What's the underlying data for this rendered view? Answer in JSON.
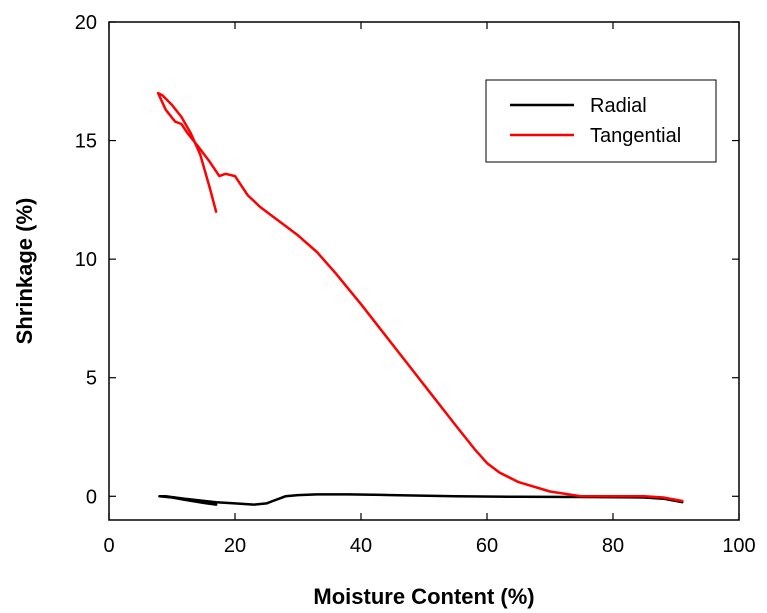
{
  "chart_data": {
    "type": "line",
    "xlabel": "Moisture Content (%)",
    "ylabel": "Shrinkage (%)",
    "xlim": [
      0,
      100
    ],
    "ylim": [
      -1,
      20
    ],
    "x_ticks": [
      0,
      20,
      40,
      60,
      80,
      100
    ],
    "y_ticks": [
      0,
      5,
      10,
      15,
      20
    ],
    "grid": false,
    "legend_position": "top-right",
    "series": [
      {
        "name": "Radial",
        "color": "#000000",
        "x": [
          17,
          15,
          12,
          10,
          8,
          9,
          12,
          17,
          20,
          23,
          25,
          26,
          27,
          28,
          30,
          33,
          38,
          45,
          55,
          65,
          75,
          85,
          88,
          91
        ],
        "y": [
          -0.35,
          -0.28,
          -0.15,
          -0.05,
          0.0,
          0.0,
          -0.1,
          -0.25,
          -0.3,
          -0.35,
          -0.3,
          -0.2,
          -0.1,
          0.0,
          0.05,
          0.08,
          0.08,
          0.05,
          0.0,
          -0.02,
          -0.03,
          -0.05,
          -0.1,
          -0.25
        ]
      },
      {
        "name": "Tangential",
        "color": "#ff0000",
        "x": [
          17,
          16,
          14.5,
          13,
          11.5,
          10,
          8.5,
          7.8,
          9,
          10.5,
          11.5,
          12.5,
          14,
          16,
          17.5,
          18.5,
          20,
          21,
          22,
          24,
          26,
          28,
          30,
          33,
          36,
          40,
          45,
          50,
          55,
          58,
          60,
          62,
          65,
          70,
          75,
          80,
          85,
          88,
          91
        ],
        "y": [
          12.0,
          13.0,
          14.4,
          15.3,
          16.0,
          16.5,
          16.9,
          17.0,
          16.3,
          15.8,
          15.7,
          15.3,
          14.8,
          14.1,
          13.5,
          13.6,
          13.5,
          13.1,
          12.7,
          12.2,
          11.8,
          11.4,
          11.0,
          10.3,
          9.4,
          8.1,
          6.4,
          4.7,
          3.0,
          2.0,
          1.4,
          1.0,
          0.6,
          0.2,
          0.0,
          0.0,
          0.0,
          -0.05,
          -0.2
        ]
      }
    ]
  }
}
